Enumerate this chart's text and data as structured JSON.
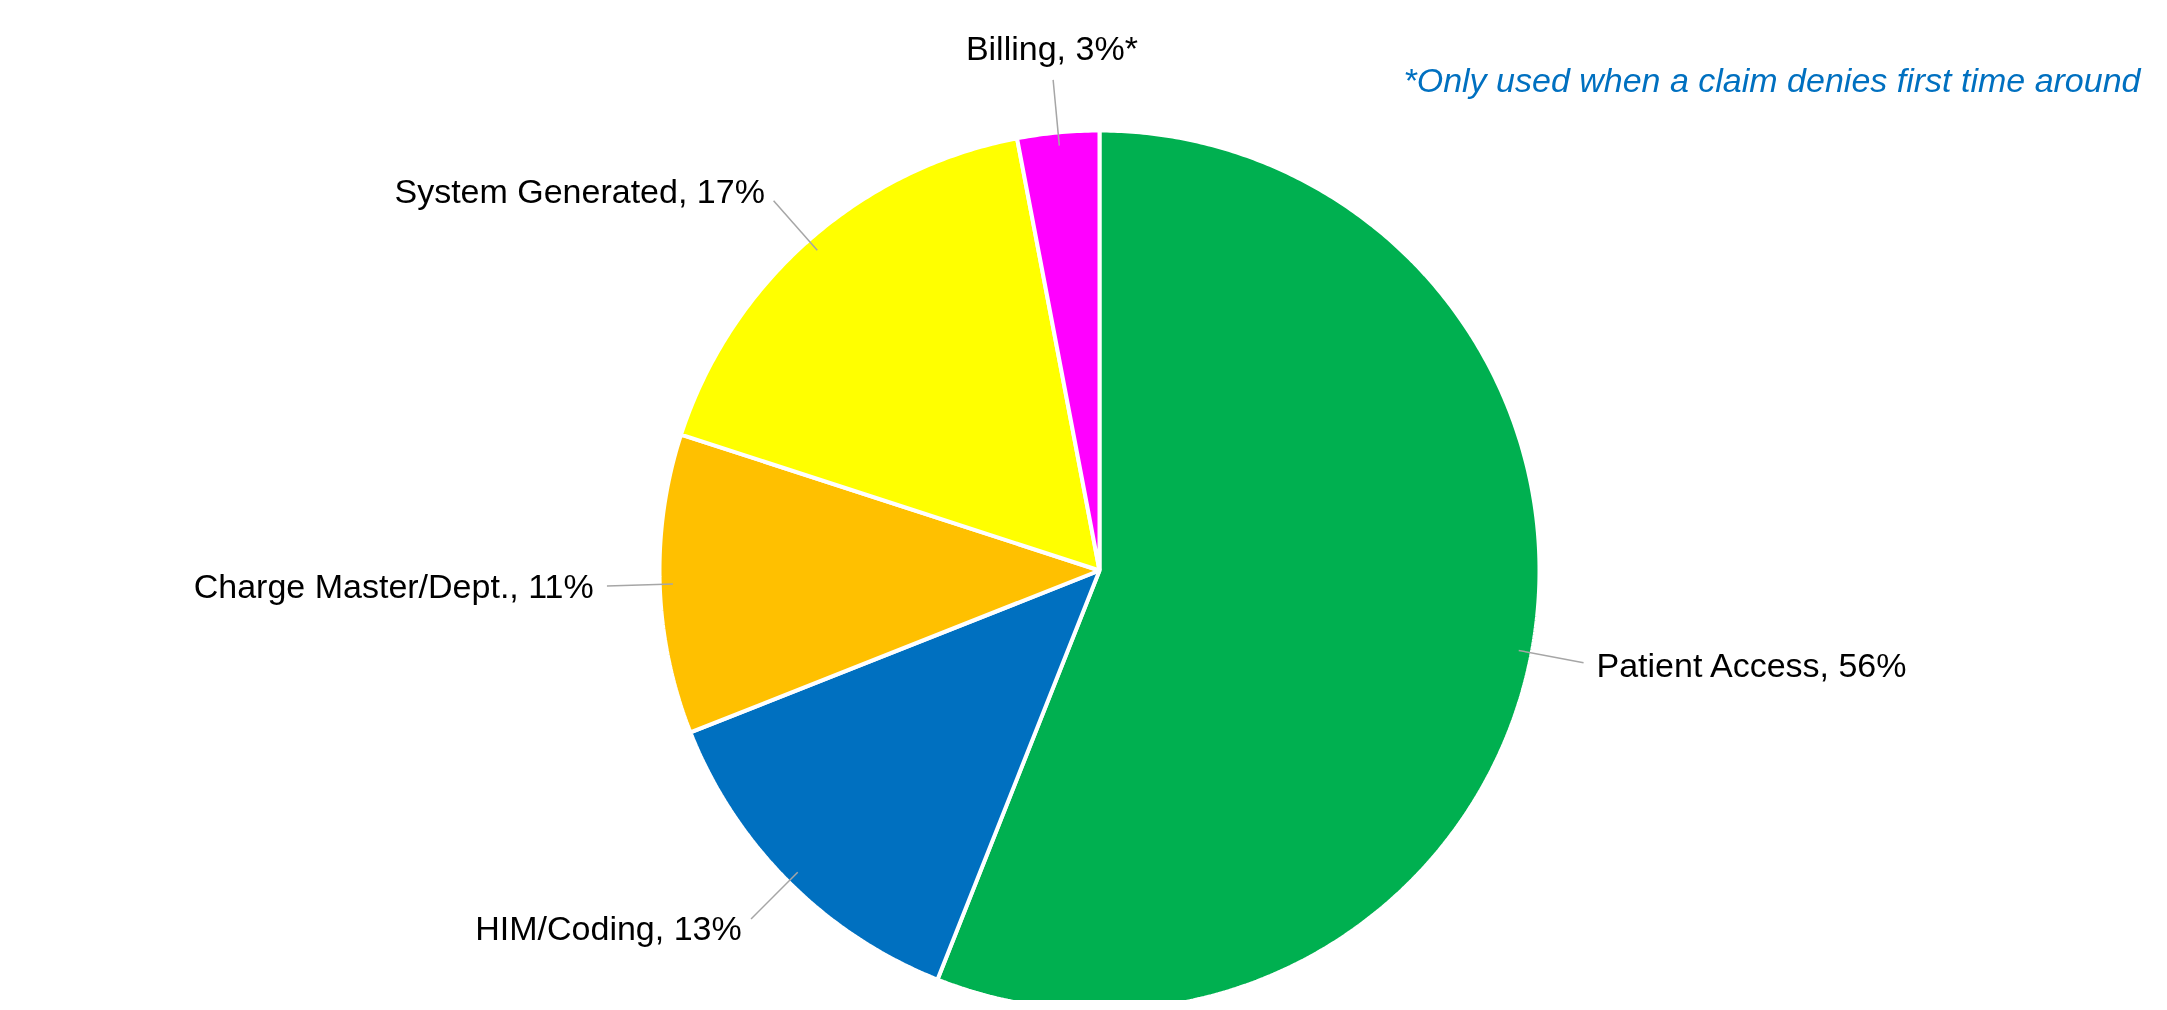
{
  "chart_data": {
    "type": "pie",
    "categories": [
      "Patient Access, 56%",
      "HIM/Coding, 13%",
      "Charge Master/Dept., 11%",
      "System Generated, 17%",
      "Billing, 3%*"
    ],
    "values": [
      56,
      13,
      11,
      17,
      3
    ],
    "colors": [
      "#00b050",
      "#0070c0",
      "#ffc000",
      "#ffff00",
      "#ff00ff"
    ],
    "annotations": [
      "*Only used when a claim denies first time around"
    ]
  }
}
